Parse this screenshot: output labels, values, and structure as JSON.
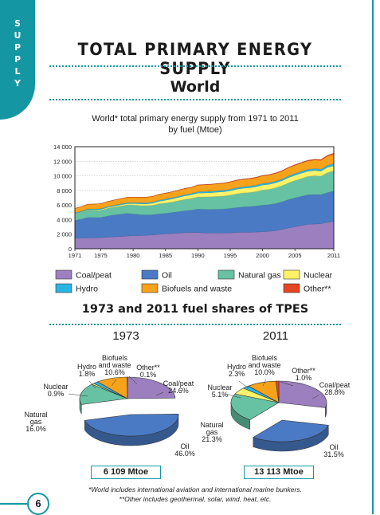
{
  "sidebar": {
    "section_letters": [
      "S",
      "U",
      "P",
      "P",
      "L",
      "Y"
    ]
  },
  "page": {
    "title": "TOTAL PRIMARY ENERGY SUPPLY",
    "section": "World",
    "page_number": "6"
  },
  "colors": {
    "coal_peat": "#9b7fbf",
    "oil": "#4a7ac4",
    "natural_gas": "#66c2a3",
    "nuclear": "#fff266",
    "hydro": "#29b5e3",
    "biofuels_waste": "#f7a21b",
    "other": "#e64523",
    "accent": "#1597a3"
  },
  "chart_data": [
    {
      "type": "area",
      "stacked": true,
      "title": "World* total primary energy supply from 1971 to 2011",
      "subtitle": "by fuel (Mtoe)",
      "x": [
        1971,
        1972,
        1973,
        1974,
        1975,
        1976,
        1977,
        1978,
        1979,
        1980,
        1981,
        1982,
        1983,
        1984,
        1985,
        1986,
        1987,
        1988,
        1989,
        1990,
        1991,
        1992,
        1993,
        1994,
        1995,
        1996,
        1997,
        1998,
        1999,
        2000,
        2001,
        2002,
        2003,
        2004,
        2005,
        2006,
        2007,
        2008,
        2009,
        2010,
        2011
      ],
      "x_tick_labels": [
        "1971",
        "1975",
        "1980",
        "1985",
        "1990",
        "1995",
        "2000",
        "2005",
        "2011"
      ],
      "y_ticks": [
        0,
        2000,
        4000,
        6000,
        8000,
        10000,
        12000,
        14000
      ],
      "y_tick_labels": [
        "0",
        "2 000",
        "4 000",
        "6 000",
        "8 000",
        "10 000",
        "12 000",
        "14 000"
      ],
      "ylim": [
        0,
        14000
      ],
      "grid": true,
      "series": [
        {
          "name": "Coal/peat",
          "key": "coal_peat",
          "values": [
            1450,
            1470,
            1490,
            1510,
            1530,
            1590,
            1630,
            1670,
            1740,
            1790,
            1800,
            1840,
            1890,
            1980,
            2040,
            2080,
            2150,
            2200,
            2220,
            2220,
            2170,
            2140,
            2160,
            2160,
            2180,
            2230,
            2260,
            2250,
            2290,
            2330,
            2380,
            2480,
            2660,
            2850,
            3020,
            3190,
            3350,
            3390,
            3440,
            3620,
            3780
          ]
        },
        {
          "name": "Oil",
          "key": "oil",
          "values": [
            2440,
            2590,
            2820,
            2770,
            2760,
            2900,
            3000,
            3070,
            3110,
            2990,
            2890,
            2810,
            2780,
            2820,
            2820,
            2890,
            2940,
            3030,
            3070,
            3230,
            3240,
            3260,
            3270,
            3300,
            3360,
            3420,
            3500,
            3530,
            3580,
            3660,
            3680,
            3720,
            3780,
            3900,
            3980,
            4020,
            4060,
            4050,
            3990,
            4080,
            4140
          ]
        },
        {
          "name": "Natural gas",
          "key": "natural_gas",
          "values": [
            900,
            950,
            990,
            1000,
            1000,
            1050,
            1080,
            1100,
            1160,
            1230,
            1250,
            1260,
            1290,
            1370,
            1410,
            1440,
            1500,
            1550,
            1610,
            1660,
            1700,
            1730,
            1760,
            1770,
            1810,
            1890,
            1900,
            1940,
            1980,
            2070,
            2090,
            2150,
            2210,
            2290,
            2360,
            2420,
            2510,
            2580,
            2520,
            2730,
            2790
          ]
        },
        {
          "name": "Nuclear",
          "key": "nuclear",
          "values": [
            30,
            40,
            53,
            70,
            100,
            120,
            140,
            160,
            170,
            190,
            230,
            250,
            290,
            340,
            390,
            420,
            450,
            480,
            500,
            530,
            550,
            560,
            580,
            590,
            610,
            630,
            640,
            650,
            660,
            680,
            690,
            700,
            690,
            710,
            720,
            730,
            710,
            710,
            700,
            720,
            670
          ]
        },
        {
          "name": "Hydro",
          "key": "hydro",
          "values": [
            100,
            105,
            110,
            115,
            120,
            122,
            124,
            130,
            135,
            145,
            147,
            150,
            155,
            160,
            162,
            165,
            168,
            170,
            172,
            184,
            188,
            190,
            198,
            200,
            210,
            212,
            215,
            220,
            222,
            225,
            224,
            225,
            228,
            240,
            250,
            255,
            260,
            265,
            275,
            295,
            300
          ]
        },
        {
          "name": "Biofuels and waste",
          "key": "biofuels_waste",
          "values": [
            610,
            620,
            645,
            655,
            660,
            675,
            690,
            710,
            720,
            730,
            740,
            750,
            765,
            780,
            790,
            800,
            810,
            820,
            830,
            900,
            920,
            930,
            940,
            950,
            980,
            990,
            1000,
            1010,
            1020,
            1030,
            1040,
            1060,
            1080,
            1110,
            1130,
            1140,
            1160,
            1180,
            1210,
            1260,
            1310
          ]
        },
        {
          "name": "Other**",
          "key": "other",
          "values": [
            6,
            6,
            6,
            7,
            8,
            9,
            10,
            12,
            14,
            16,
            18,
            20,
            22,
            25,
            28,
            30,
            32,
            34,
            36,
            40,
            42,
            44,
            46,
            48,
            50,
            52,
            55,
            58,
            60,
            62,
            64,
            66,
            70,
            74,
            78,
            82,
            88,
            94,
            100,
            110,
            127
          ]
        }
      ],
      "legend": [
        "Coal/peat",
        "Oil",
        "Natural gas",
        "Nuclear",
        "Hydro",
        "Biofuels and waste",
        "Other**"
      ],
      "legend_placement": "bottom"
    },
    {
      "type": "pie",
      "title": "1973 and 2011 fuel shares of TPES",
      "year": "1973",
      "total_label": "6 109 Mtoe",
      "slices": [
        {
          "key": "coal_peat",
          "label": "Coal/peat",
          "value_label": "24.6%",
          "value": 24.6
        },
        {
          "key": "oil",
          "label": "Oil",
          "value_label": "46.0%",
          "value": 46.0
        },
        {
          "key": "natural_gas",
          "label": "Natural gas",
          "value_label": "16.0%",
          "value": 16.0
        },
        {
          "key": "nuclear",
          "label": "Nuclear",
          "value_label": "0.9%",
          "value": 0.9
        },
        {
          "key": "hydro",
          "label": "Hydro",
          "value_label": "1.8%",
          "value": 1.8
        },
        {
          "key": "biofuels_waste",
          "label": "Biofuels and waste",
          "value_label": "10.6%",
          "value": 10.6
        },
        {
          "key": "other",
          "label": "Other**",
          "value_label": "0.1%",
          "value": 0.1
        }
      ]
    },
    {
      "type": "pie",
      "year": "2011",
      "total_label": "13 113 Mtoe",
      "slices": [
        {
          "key": "coal_peat",
          "label": "Coal/peat",
          "value_label": "28.8%",
          "value": 28.8
        },
        {
          "key": "oil",
          "label": "Oil",
          "value_label": "31.5%",
          "value": 31.5
        },
        {
          "key": "natural_gas",
          "label": "Natural gas",
          "value_label": "21.3%",
          "value": 21.3
        },
        {
          "key": "nuclear",
          "label": "Nuclear",
          "value_label": "5.1%",
          "value": 5.1
        },
        {
          "key": "hydro",
          "label": "Hydro",
          "value_label": "2.3%",
          "value": 2.3
        },
        {
          "key": "biofuels_waste",
          "label": "Biofuels and waste",
          "value_label": "10.0%",
          "value": 10.0
        },
        {
          "key": "other",
          "label": "Other**",
          "value_label": "1.0%",
          "value": 1.0
        }
      ]
    }
  ],
  "footnotes": [
    "*World includes international aviation and international marine bunkers.",
    "**Other includes geothermal, solar, wind, heat, etc."
  ]
}
